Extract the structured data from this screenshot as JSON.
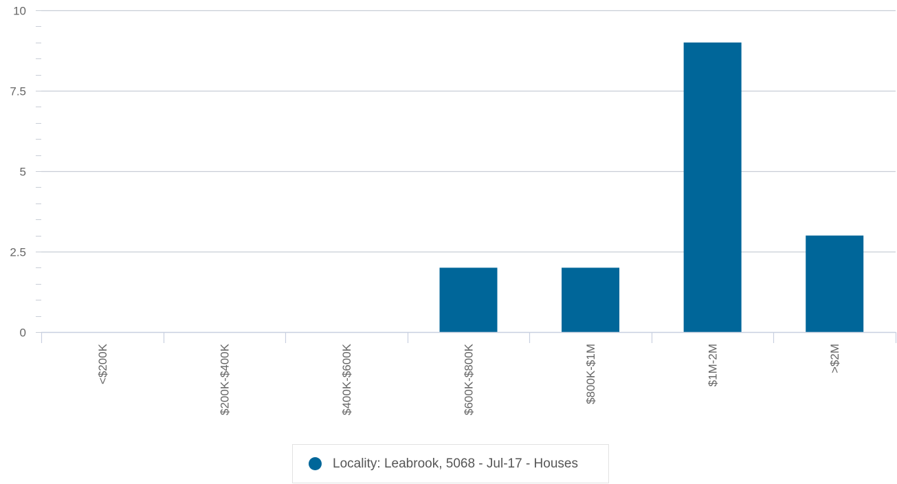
{
  "chart_data": {
    "type": "bar",
    "categories": [
      "<$200K",
      "$200K-$400K",
      "$400K-$600K",
      "$600K-$800K",
      "$800K-$1M",
      "$1M-2M",
      ">$2M"
    ],
    "series": [
      {
        "name": "Locality: Leabrook, 5068 - Jul-17 - Houses",
        "values": [
          0,
          0,
          0,
          2,
          2,
          9,
          3
        ],
        "color": "#006699"
      }
    ],
    "ylim": [
      0,
      10
    ],
    "yticks": [
      0,
      2.5,
      5,
      7.5,
      10
    ],
    "ytick_labels": [
      "0",
      "2.5",
      "5",
      "7.5",
      "10"
    ],
    "grid": true,
    "legend_position": "bottom-center",
    "title": "",
    "xlabel": "",
    "ylabel": ""
  }
}
